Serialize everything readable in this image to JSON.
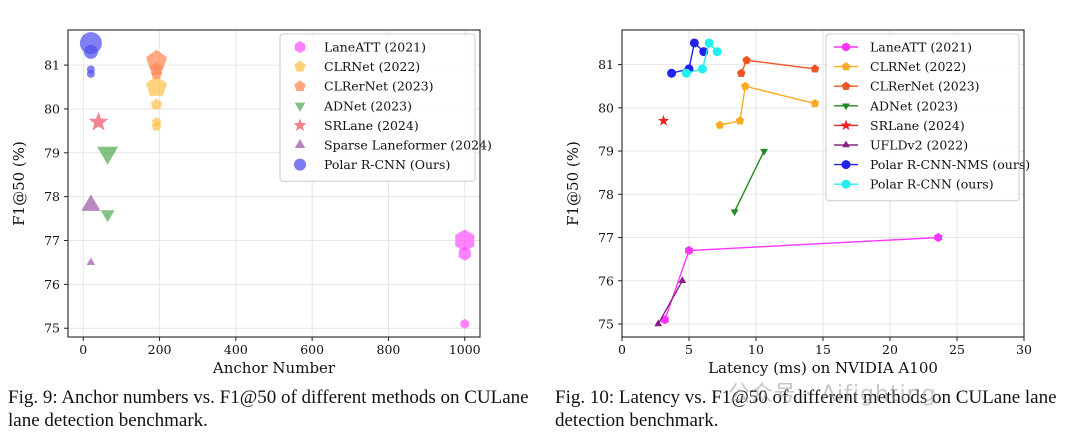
{
  "chart_data": [
    {
      "type": "scatter",
      "xlabel": "Anchor Number",
      "ylabel": "F1@50 (%)",
      "xlim": [
        -40,
        1040
      ],
      "ylim": [
        74.8,
        81.8
      ],
      "xticks": [
        0,
        200,
        400,
        600,
        800,
        1000
      ],
      "yticks": [
        75,
        76,
        77,
        78,
        79,
        80,
        81
      ],
      "grid": true,
      "legend_position": "top-right",
      "series": [
        {
          "name": "LaneATT (2021)",
          "color": "#ff55ff",
          "marker": "hexagon",
          "points": [
            {
              "x": 1000,
              "y": 75.1,
              "s": 5
            },
            {
              "x": 1000,
              "y": 76.7,
              "s": 7
            },
            {
              "x": 1000,
              "y": 77.0,
              "s": 11
            }
          ]
        },
        {
          "name": "CLRNet (2022)",
          "color": "#ffc04d",
          "marker": "pentagon",
          "points": [
            {
              "x": 192,
              "y": 79.6,
              "s": 5
            },
            {
              "x": 192,
              "y": 79.7,
              "s": 5
            },
            {
              "x": 192,
              "y": 80.1,
              "s": 6
            },
            {
              "x": 192,
              "y": 80.5,
              "s": 11
            }
          ]
        },
        {
          "name": "CLRerNet (2023)",
          "color": "#ff8855",
          "marker": "pentagon",
          "points": [
            {
              "x": 192,
              "y": 80.8,
              "s": 6
            },
            {
              "x": 192,
              "y": 80.9,
              "s": 7
            },
            {
              "x": 192,
              "y": 81.1,
              "s": 11
            }
          ]
        },
        {
          "name": "ADNet (2023)",
          "color": "#55aa55",
          "marker": "triangle-down",
          "points": [
            {
              "x": 64,
              "y": 77.6,
              "s": 8
            },
            {
              "x": 64,
              "y": 79.0,
              "s": 12
            }
          ]
        },
        {
          "name": "SRLane (2024)",
          "color": "#ee5566",
          "marker": "star",
          "points": [
            {
              "x": 40,
              "y": 79.7,
              "s": 9
            }
          ]
        },
        {
          "name": "Sparse Laneformer (2024)",
          "color": "#a05aa8",
          "marker": "triangle-up",
          "points": [
            {
              "x": 20,
              "y": 76.5,
              "s": 5
            },
            {
              "x": 20,
              "y": 77.8,
              "s": 11
            }
          ]
        },
        {
          "name": "Polar R-CNN (Ours)",
          "color": "#4f4fee",
          "marker": "circle",
          "points": [
            {
              "x": 20,
              "y": 80.8,
              "s": 4
            },
            {
              "x": 20,
              "y": 80.9,
              "s": 4
            },
            {
              "x": 20,
              "y": 81.3,
              "s": 7
            },
            {
              "x": 20,
              "y": 81.5,
              "s": 11
            }
          ]
        }
      ]
    },
    {
      "type": "line",
      "xlabel": "Latency (ms) on NVIDIA A100",
      "ylabel": "F1@50 (%)",
      "xlim": [
        0,
        30
      ],
      "ylim": [
        74.7,
        81.8
      ],
      "xticks": [
        0,
        5,
        10,
        15,
        20,
        25,
        30
      ],
      "yticks": [
        75,
        76,
        77,
        78,
        79,
        80,
        81
      ],
      "grid": true,
      "legend_position": "top-right",
      "series": [
        {
          "name": "LaneATT (2021)",
          "color": "#ff33ff",
          "marker": "hexagon",
          "points": [
            {
              "x": 3.2,
              "y": 75.1
            },
            {
              "x": 5.0,
              "y": 76.7
            },
            {
              "x": 23.6,
              "y": 77.0
            }
          ]
        },
        {
          "name": "CLRNet (2022)",
          "color": "#ffaa22",
          "marker": "pentagon",
          "points": [
            {
              "x": 7.3,
              "y": 79.6
            },
            {
              "x": 8.8,
              "y": 79.7
            },
            {
              "x": 9.2,
              "y": 80.5
            },
            {
              "x": 14.4,
              "y": 80.1
            }
          ]
        },
        {
          "name": "CLRerNet (2023)",
          "color": "#ee5522",
          "marker": "pentagon",
          "points": [
            {
              "x": 8.9,
              "y": 80.8
            },
            {
              "x": 9.3,
              "y": 81.1
            },
            {
              "x": 14.4,
              "y": 80.9
            }
          ]
        },
        {
          "name": "ADNet (2023)",
          "color": "#228822",
          "marker": "triangle-down",
          "points": [
            {
              "x": 8.4,
              "y": 77.6
            },
            {
              "x": 10.6,
              "y": 79.0
            }
          ]
        },
        {
          "name": "SRLane (2024)",
          "color": "#ee2222",
          "marker": "star",
          "points": [
            {
              "x": 3.1,
              "y": 79.7
            }
          ]
        },
        {
          "name": "UFLDv2 (2022)",
          "color": "#882288",
          "marker": "triangle-up",
          "points": [
            {
              "x": 2.7,
              "y": 75.0
            },
            {
              "x": 4.5,
              "y": 76.0
            }
          ]
        },
        {
          "name": "Polar R-CNN-NMS (ours)",
          "color": "#2222ee",
          "marker": "circle",
          "points": [
            {
              "x": 3.7,
              "y": 80.8
            },
            {
              "x": 5.0,
              "y": 80.9
            },
            {
              "x": 5.4,
              "y": 81.5
            },
            {
              "x": 6.1,
              "y": 81.3
            }
          ]
        },
        {
          "name": "Polar R-CNN (ours)",
          "color": "#22eeee",
          "marker": "circle",
          "points": [
            {
              "x": 4.8,
              "y": 80.8
            },
            {
              "x": 6.0,
              "y": 80.9
            },
            {
              "x": 6.5,
              "y": 81.5
            },
            {
              "x": 7.1,
              "y": 81.3
            }
          ]
        }
      ]
    }
  ],
  "captions": {
    "fig9": "Fig. 9: Anchor numbers vs. F1@50 of different methods on CULane lane detection benchmark.",
    "fig10": "Fig. 10: Latency vs. F1@50 of different methods on CULane lane detection benchmark."
  },
  "watermark": "公众号 · Aifighting"
}
